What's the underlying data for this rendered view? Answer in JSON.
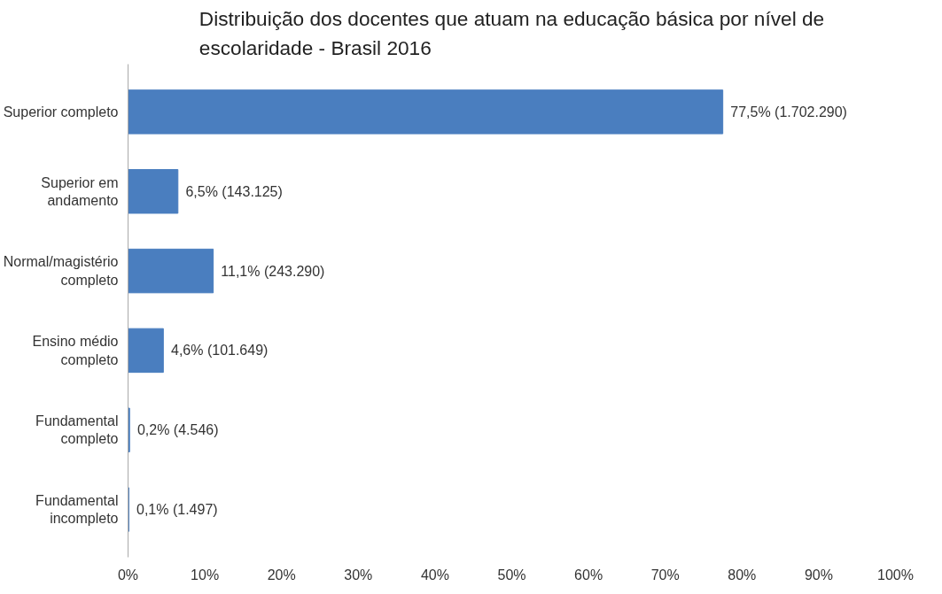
{
  "chart_data": {
    "type": "bar",
    "orientation": "horizontal",
    "title": "Distribuição dos docentes que atuam na educação básica por nível de\nescolaridade - Brasil 2016",
    "categories": [
      "Superior completo",
      "Superior em\nandamento",
      "Normal/magistério\ncompleto",
      "Ensino médio\ncompleto",
      "Fundamental\ncompleto",
      "Fundamental\nincompleto"
    ],
    "values": [
      77.5,
      6.5,
      11.1,
      4.6,
      0.2,
      0.1
    ],
    "value_labels": [
      "77,5% (1.702.290)",
      "6,5% (143.125)",
      "11,1% (243.290)",
      "4,6% (101.649)",
      "0,2% (4.546)",
      "0,1% (1.497)"
    ],
    "color": "#4a7ebf",
    "xlim": [
      0,
      100
    ],
    "xticks": [
      {
        "value": 0,
        "label": "0%"
      },
      {
        "value": 10,
        "label": "10%"
      },
      {
        "value": 20,
        "label": "20%"
      },
      {
        "value": 30,
        "label": "30%"
      },
      {
        "value": 40,
        "label": "40%"
      },
      {
        "value": 50,
        "label": "50%"
      },
      {
        "value": 60,
        "label": "60%"
      },
      {
        "value": 70,
        "label": "70%"
      },
      {
        "value": 80,
        "label": "80%"
      },
      {
        "value": 90,
        "label": "90%"
      },
      {
        "value": 100,
        "label": "100%"
      }
    ],
    "grid": false
  }
}
